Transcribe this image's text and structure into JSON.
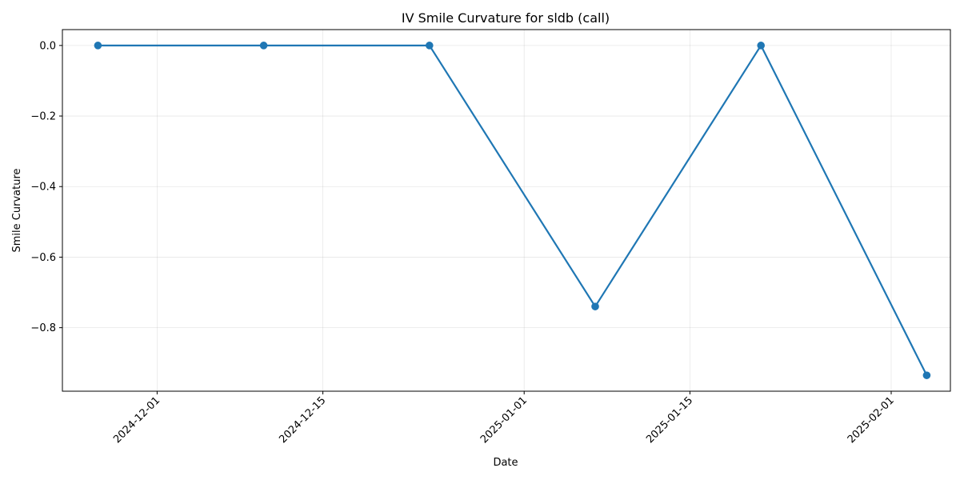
{
  "chart_data": {
    "type": "line",
    "title": "IV Smile Curvature for sldb (call)",
    "xlabel": "Date",
    "ylabel": "Smile Curvature",
    "x_ticks": [
      "2024-12-01",
      "2024-12-15",
      "2025-01-01",
      "2025-01-15",
      "2025-02-01"
    ],
    "y_ticks": [
      "0.0",
      "−0.2",
      "−0.4",
      "−0.6",
      "−0.8"
    ],
    "y_tick_values": [
      0.0,
      -0.2,
      -0.4,
      -0.6,
      -0.8
    ],
    "xlim": [
      "2024-11-23",
      "2025-02-06"
    ],
    "ylim": [
      -0.98,
      0.045
    ],
    "grid": true,
    "series": [
      {
        "color": "#1f77b4",
        "marker": "circle",
        "x": [
          "2024-11-26",
          "2024-12-10",
          "2024-12-24",
          "2025-01-07",
          "2025-01-21",
          "2025-02-04"
        ],
        "y": [
          0.0,
          0.0,
          0.0,
          -0.74,
          0.0,
          -0.935
        ]
      }
    ]
  }
}
